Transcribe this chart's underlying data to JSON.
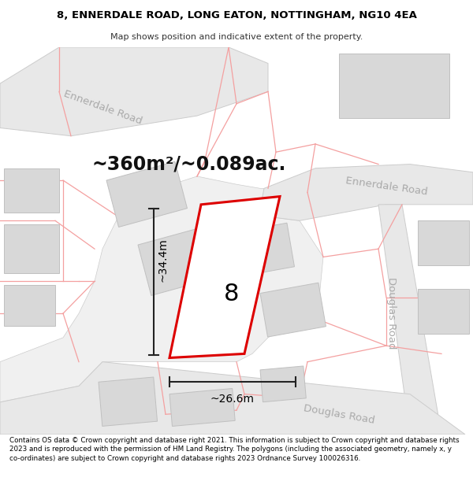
{
  "title_line1": "8, ENNERDALE ROAD, LONG EATON, NOTTINGHAM, NG10 4EA",
  "title_line2": "Map shows position and indicative extent of the property.",
  "area_text": "~360m²/~0.089ac.",
  "dim_width": "~26.6m",
  "dim_height": "~34.4m",
  "plot_number": "8",
  "footer_text": "Contains OS data © Crown copyright and database right 2021. This information is subject to Crown copyright and database rights 2023 and is reproduced with the permission of HM Land Registry. The polygons (including the associated geometry, namely x, y co-ordinates) are subject to Crown copyright and database rights 2023 Ordnance Survey 100026316.",
  "map_bg": "#ffffff",
  "road_fill": "#e8e8e8",
  "road_edge": "#cccccc",
  "building_fill": "#d8d8d8",
  "building_edge": "#c0c0c0",
  "plot_stroke": "#dd0000",
  "plot_fill": "#ffffff",
  "road_label_color": "#aaaaaa",
  "dim_color": "#222222",
  "area_color": "#111111",
  "pink": "#f4a0a0"
}
